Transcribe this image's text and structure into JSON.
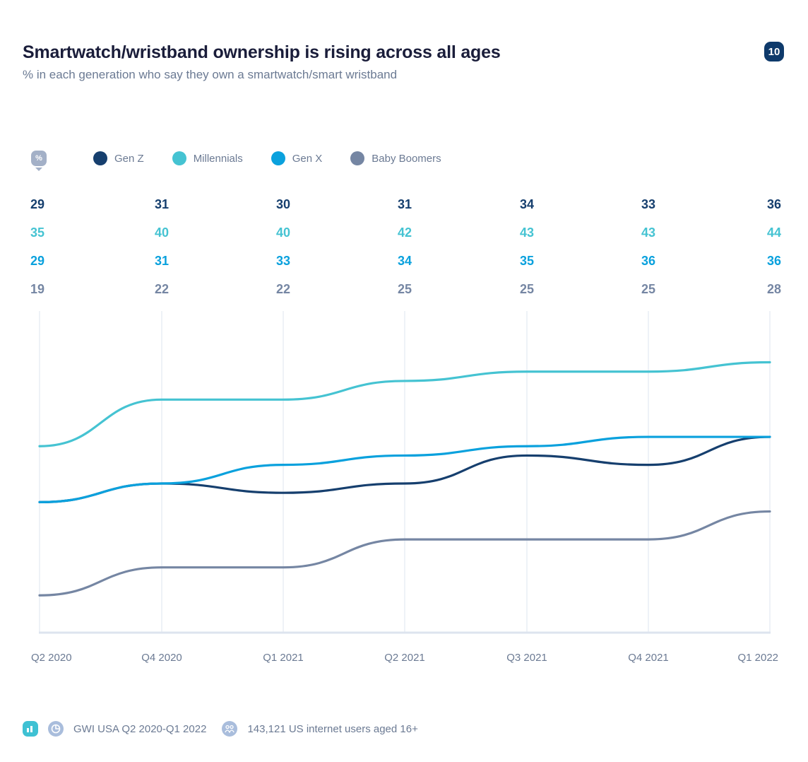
{
  "header": {
    "title": "Smartwatch/wristband ownership is rising across all ages",
    "subtitle": "% in each generation who say they own a smartwatch/smart wristband",
    "page_number": "10"
  },
  "legend": {
    "unit_icon_label": "%",
    "unit_icon": "percent-icon"
  },
  "footer": {
    "chart_icon": "bar-chart-icon",
    "source_icon": "pie-chart-icon",
    "source": "GWI USA Q2 2020-Q1 2022",
    "sample_icon": "people-icon",
    "sample": "143,121 US internet users aged 16+"
  },
  "colors": {
    "gen_z": "#163f6e",
    "millennials": "#45c3d2",
    "gen_x": "#0aa1dd",
    "baby_boomers": "#7586a3",
    "gridline": "#dde4ef",
    "axis_label": "#6b7a93"
  },
  "chart_data": {
    "type": "line",
    "title": "Smartwatch/wristband ownership is rising across all ages",
    "subtitle": "% in each generation who say they own a smartwatch/smart wristband",
    "xlabel": "",
    "ylabel": "%",
    "categories": [
      "Q2 2020",
      "Q4 2020",
      "Q1 2021",
      "Q2 2021",
      "Q3 2021",
      "Q4 2021",
      "Q1 2022"
    ],
    "series": [
      {
        "name": "Gen Z",
        "key": "gen_z",
        "color": "#163f6e",
        "values": [
          29,
          31,
          30,
          31,
          34,
          33,
          36
        ]
      },
      {
        "name": "Millennials",
        "key": "millennials",
        "color": "#45c3d2",
        "values": [
          35,
          40,
          40,
          42,
          43,
          43,
          44
        ]
      },
      {
        "name": "Gen X",
        "key": "gen_x",
        "color": "#0aa1dd",
        "values": [
          29,
          31,
          33,
          34,
          35,
          36,
          36
        ]
      },
      {
        "name": "Baby Boomers",
        "key": "baby_boomers",
        "color": "#7586a3",
        "values": [
          19,
          22,
          22,
          25,
          25,
          25,
          28
        ]
      }
    ],
    "ylim": [
      15,
      49.5
    ],
    "grid": "vertical",
    "legend": "top-left",
    "data_labels": "table-above-chart"
  }
}
